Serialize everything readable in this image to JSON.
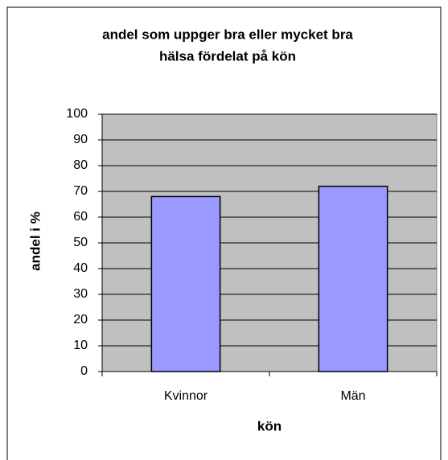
{
  "chart_data": {
    "type": "bar",
    "title": [
      "andel som uppger bra eller mycket bra",
      "hälsa fördelat på kön"
    ],
    "x_label": "kön",
    "y_label": "andel i %",
    "categories": [
      "Kvinnor",
      "Män"
    ],
    "values": [
      68,
      72
    ],
    "color": "#9999ff",
    "ylim": [
      0,
      100
    ],
    "yticks": [
      0,
      10,
      20,
      30,
      40,
      50,
      60,
      70,
      80,
      90,
      100
    ],
    "grid": true
  }
}
